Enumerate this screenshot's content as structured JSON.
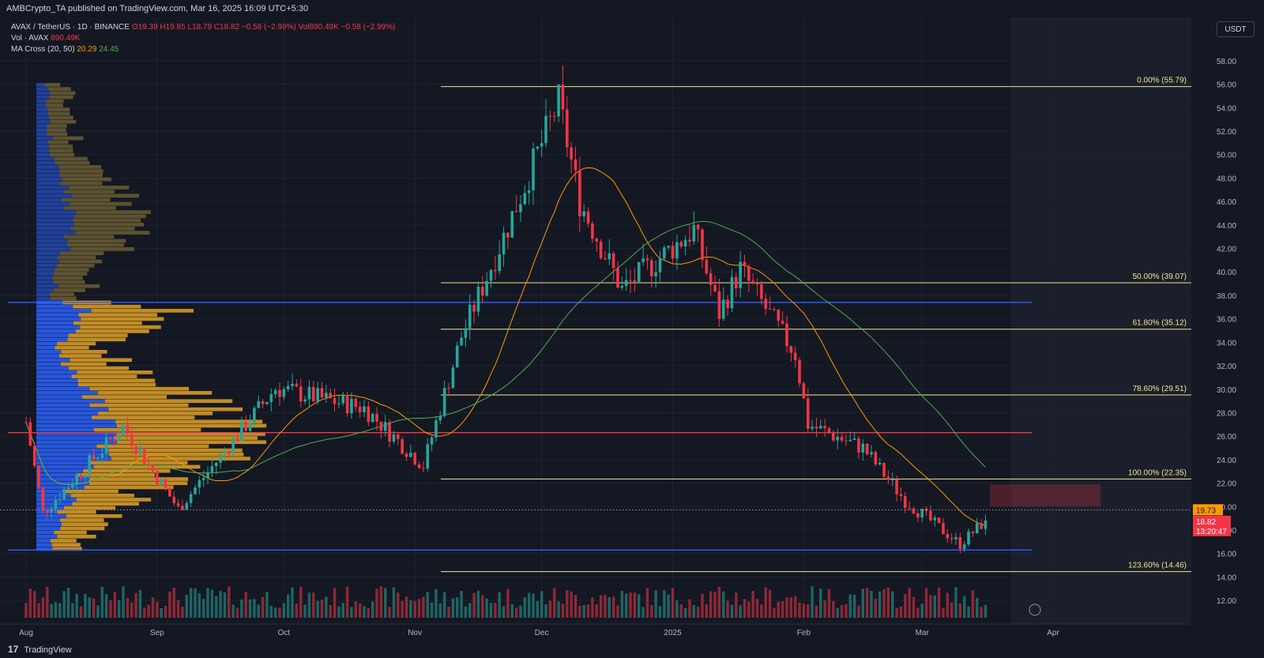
{
  "header": {
    "publisher_line": "AMBCrypto_TA published on TradingView.com, Mar 16, 2025 16:09 UTC+5:30"
  },
  "legend": {
    "symbol": "AVAX / TetherUS · 1D · BINANCE",
    "open": "O19.39",
    "high": "H19.85",
    "low": "L18.79",
    "close": "C18.82",
    "change": "−0.58 (−2.99%)",
    "vol_label": "Vol · AVAX",
    "vol_value": "890.49K",
    "vol_extra": "Vol890.49K",
    "ma_label": "MA Cross (20, 50)",
    "ma_fast": "20.29",
    "ma_slow": "24.45"
  },
  "currency_button": "USDT",
  "footer": {
    "brand": "TradingView",
    "logo": "17"
  },
  "price_tags": {
    "ma_tag": "19.73",
    "last_price": "18.82",
    "countdown": "13:20:47"
  },
  "colors": {
    "background": "#141823",
    "up": "#26a69a",
    "down": "#f23645",
    "ma_fast": "#ff9800",
    "ma_slow": "#4caf50",
    "fib": "#f0e68c",
    "support_line": "#2962ff",
    "resistance_line": "#f23645"
  },
  "chart_data": {
    "type": "candlestick",
    "title": "AVAX / TetherUS · 1D · BINANCE",
    "y_axis": {
      "min": 11,
      "max": 59,
      "ticks": [
        12,
        14,
        16,
        18,
        20,
        22,
        24,
        26,
        28,
        30,
        32,
        34,
        36,
        38,
        40,
        42,
        44,
        46,
        48,
        50,
        52,
        54,
        56,
        58
      ]
    },
    "x_axis_labels": [
      "Aug",
      "Sep",
      "Oct",
      "Nov",
      "Dec",
      "2025",
      "Feb",
      "Mar",
      "Apr"
    ],
    "fib_levels": [
      {
        "label": "0.00% (55.79)",
        "value": 55.79
      },
      {
        "label": "50.00% (39.07)",
        "value": 39.07
      },
      {
        "label": "61.80% (35.12)",
        "value": 35.12
      },
      {
        "label": "78.60% (29.51)",
        "value": 29.51
      },
      {
        "label": "100.00% (22.35)",
        "value": 22.35
      },
      {
        "label": "123.60% (14.46)",
        "value": 14.46
      }
    ],
    "horizontal_lines": [
      {
        "name": "resistance",
        "value": 26.3
      },
      {
        "name": "support-high",
        "value": 37.4
      },
      {
        "name": "support-low",
        "value": 16.3
      }
    ],
    "key_closes": [
      {
        "date": "Aug 1",
        "close": 27.2
      },
      {
        "date": "Aug 5",
        "close": 19.5
      },
      {
        "date": "Aug 24",
        "close": 26.8
      },
      {
        "date": "Sep 6",
        "close": 19.8
      },
      {
        "date": "Sep 29",
        "close": 30.1
      },
      {
        "date": "Oct 20",
        "close": 28.4
      },
      {
        "date": "Nov 3",
        "close": 23.5
      },
      {
        "date": "Nov 12",
        "close": 34.5
      },
      {
        "date": "Nov 22",
        "close": 43.0
      },
      {
        "date": "Dec 5",
        "close": 54.5
      },
      {
        "date": "Dec 10",
        "close": 46.0
      },
      {
        "date": "Dec 20",
        "close": 38.5
      },
      {
        "date": "Jan 6",
        "close": 43.6
      },
      {
        "date": "Jan 12",
        "close": 36.5
      },
      {
        "date": "Jan 17",
        "close": 40.2
      },
      {
        "date": "Jan 30",
        "close": 33.0
      },
      {
        "date": "Feb 2",
        "close": 27.0
      },
      {
        "date": "Feb 15",
        "close": 25.0
      },
      {
        "date": "Feb 25",
        "close": 20.5
      },
      {
        "date": "Mar 10",
        "close": 16.8
      },
      {
        "date": "Mar 16",
        "close": 18.82
      }
    ]
  }
}
